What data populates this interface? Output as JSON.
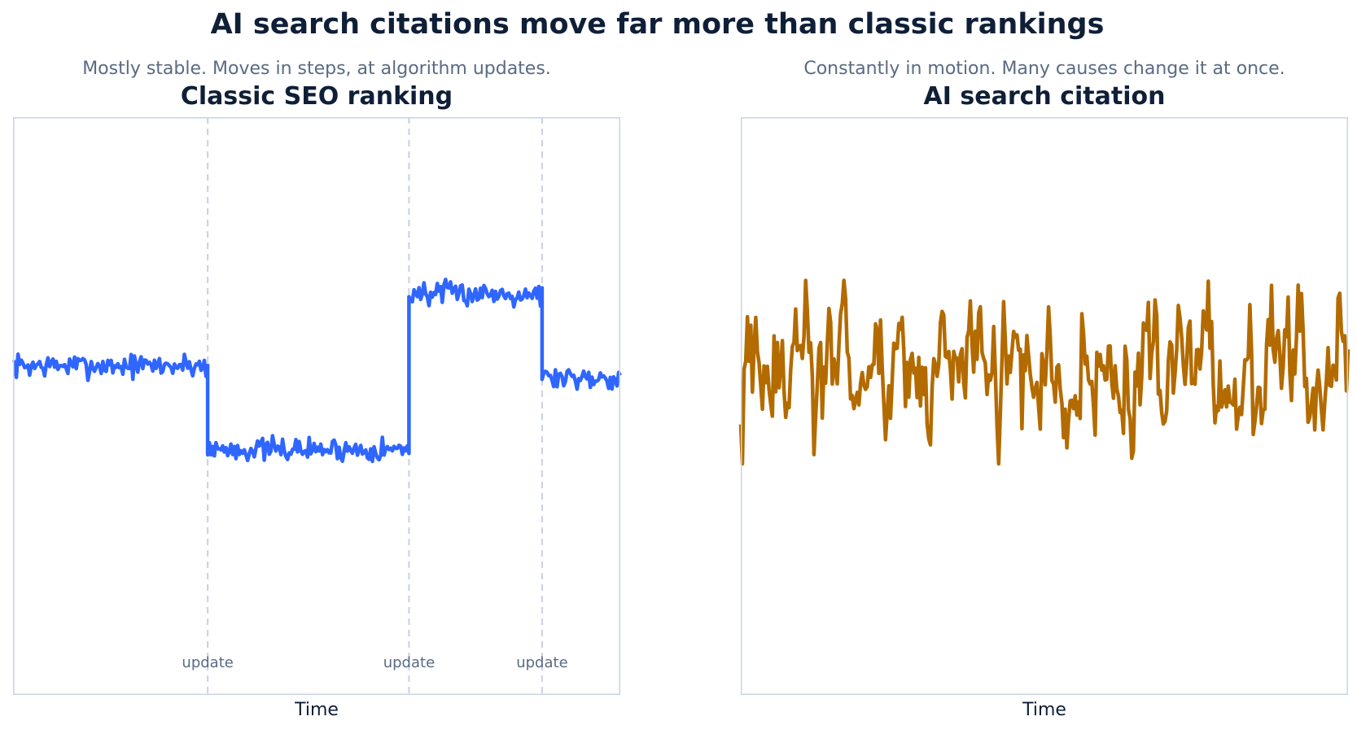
{
  "title": "AI search citations move far more than classic rankings",
  "chart_data": [
    {
      "type": "line",
      "title": "Classic SEO ranking",
      "subtitle": "Mostly stable. Moves in steps, at algorithm updates.",
      "xlabel": "Time",
      "ylabel": "",
      "xlim": [
        0,
        365
      ],
      "ylim": [
        0,
        100
      ],
      "grid": false,
      "color": "#2f66ff",
      "noise": 1.0,
      "segments": [
        {
          "x": [
            0,
            117
          ],
          "y": 57.0
        },
        {
          "x": [
            117,
            238
          ],
          "y": 42.5
        },
        {
          "x": [
            238,
            318
          ],
          "y": 69.5
        },
        {
          "x": [
            318,
            365
          ],
          "y": 55.0
        }
      ],
      "annotations": [
        {
          "x": 117,
          "text": "update"
        },
        {
          "x": 238,
          "text": "update"
        },
        {
          "x": 318,
          "text": "update"
        }
      ]
    },
    {
      "type": "line",
      "title": "AI search citation",
      "subtitle": "Constantly in motion. Many causes change it at once.",
      "xlabel": "Time",
      "ylabel": "",
      "xlim": [
        0,
        365
      ],
      "ylim": [
        0,
        100
      ],
      "grid": false,
      "color": "#b36b00",
      "baseline": 55,
      "range": [
        40,
        78
      ]
    }
  ]
}
